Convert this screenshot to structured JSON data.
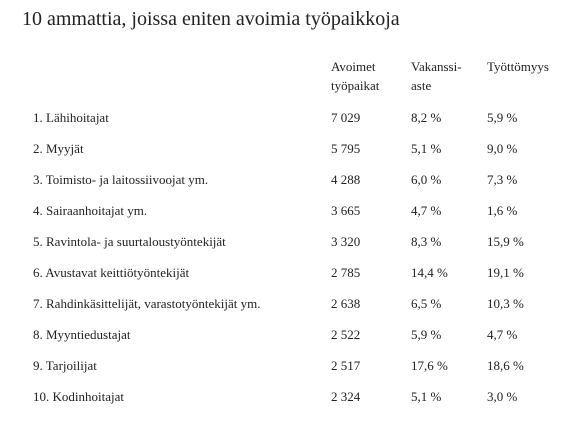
{
  "title": "10 ammattia, joissa eniten avoimia työpaikkoja",
  "header": [
    [
      "Avoimet",
      "työpaikat"
    ],
    [
      "Vakanssi-",
      "aste"
    ],
    [
      "Työttömyys"
    ]
  ],
  "table": {
    "rows": [
      [
        "1. Lähihoitajat",
        "7 029",
        "8,2 %",
        "5,9 %"
      ],
      [
        "2. Myyjät",
        "5 795",
        "5,1 %",
        "9,0 %"
      ],
      [
        "3. Toimisto- ja laitossiivoojat ym.",
        "4 288",
        "6,0 %",
        "7,3 %"
      ],
      [
        "4. Sairaanhoitajat ym.",
        "3 665",
        "4,7 %",
        "1,6 %"
      ],
      [
        "5. Ravintola- ja suurtaloustyöntekijät",
        "3 320",
        "8,3 %",
        "15,9 %"
      ],
      [
        "6. Avustavat keittiötyöntekijät",
        "2 785",
        "14,4 %",
        "19,1 %"
      ],
      [
        "7. Rahdinkäsittelijät, varastotyöntekijät ym.",
        "2 638",
        "6,5 %",
        "10,3 %"
      ],
      [
        "8. Myyntiedustajat",
        "2 522",
        "5,9 %",
        "4,7 %"
      ],
      [
        "9. Tarjoilijat",
        "2 517",
        "17,6 %",
        "18,6 %"
      ],
      [
        "10. Kodinhoitajat",
        "2 324",
        "5,1 %",
        "3,0 %"
      ]
    ]
  }
}
